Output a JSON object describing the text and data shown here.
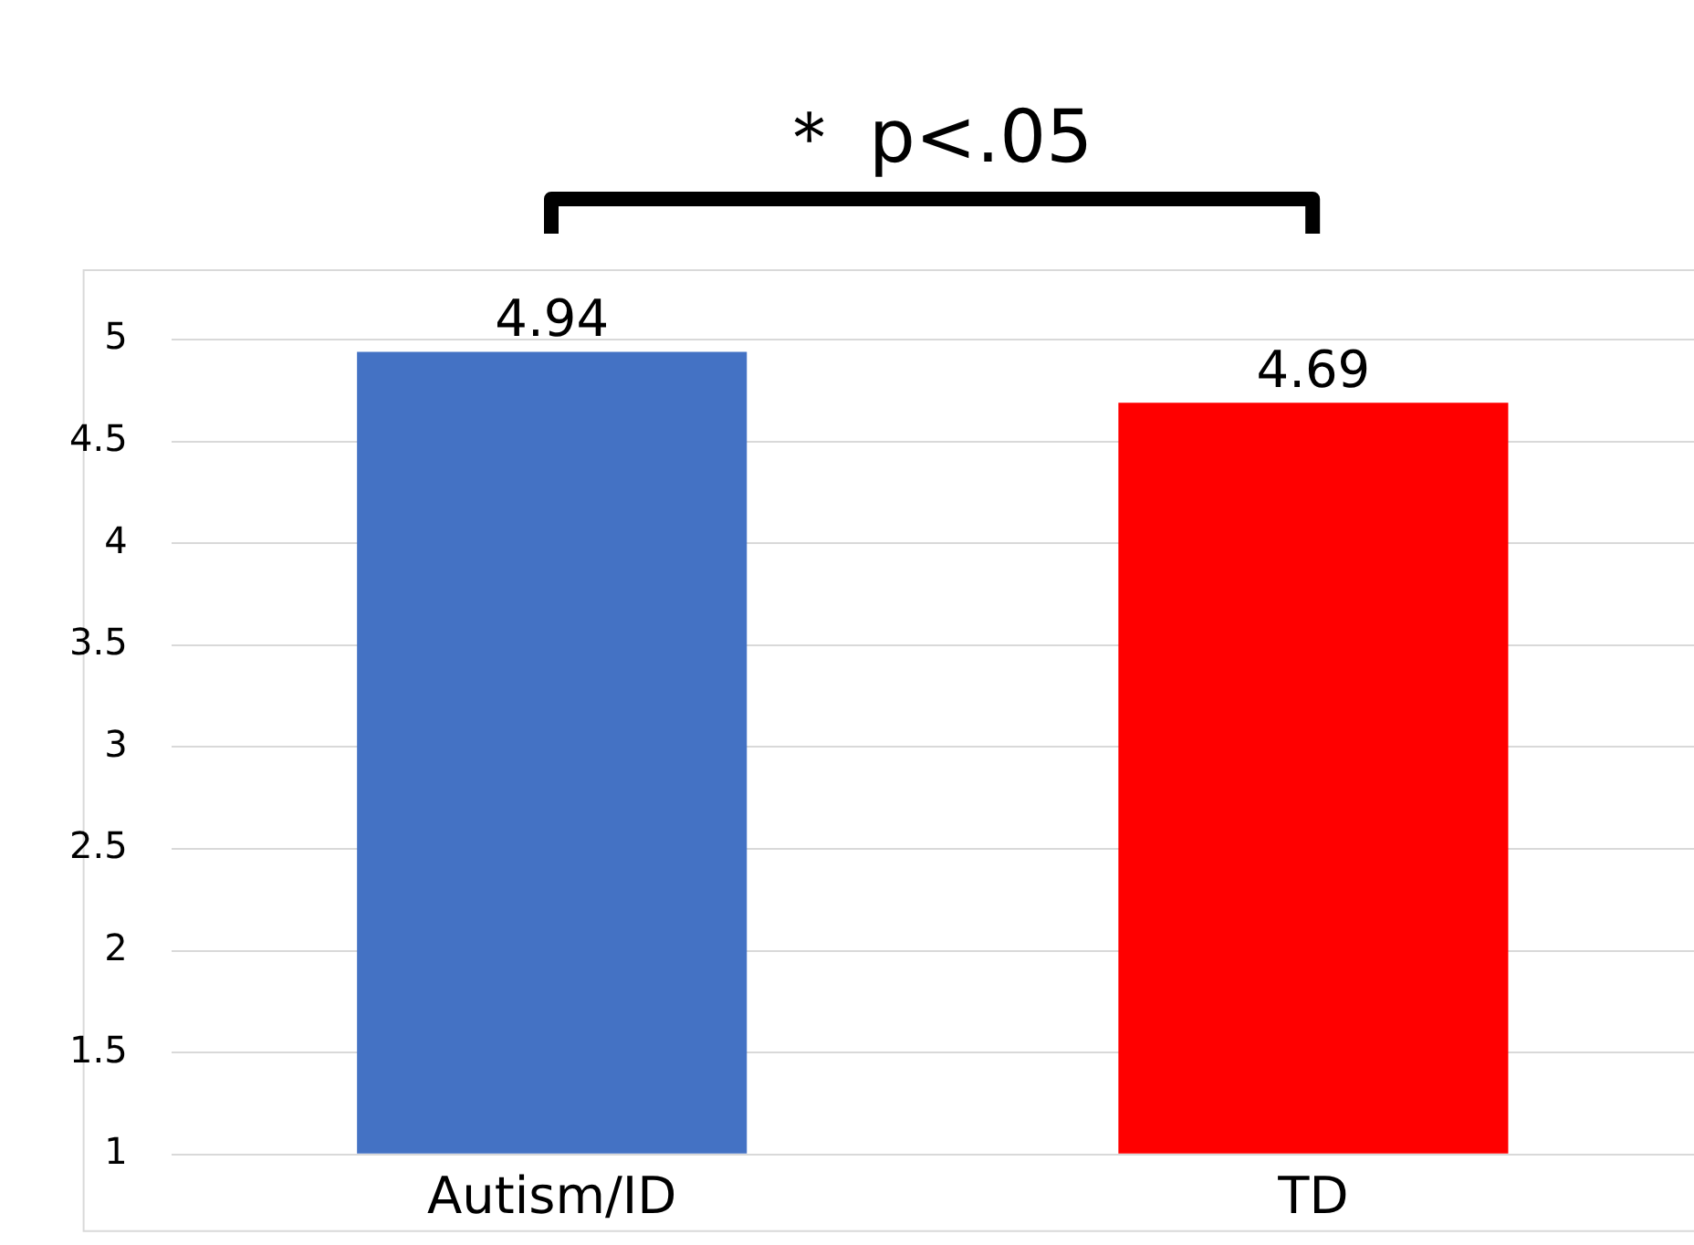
{
  "chart_data": {
    "type": "bar",
    "categories": [
      "Autism/ID",
      "TD"
    ],
    "series": [
      {
        "colors": [
          "#4472c4",
          "#ff0000"
        ],
        "values": [
          4.94,
          4.69
        ]
      }
    ],
    "ylim": [
      1,
      5
    ],
    "yticks": [
      1,
      1.5,
      2,
      2.5,
      3,
      3.5,
      4,
      4.5,
      5
    ],
    "grid": "y",
    "data_labels": true,
    "annotations": [
      "＊ p<.05"
    ]
  }
}
